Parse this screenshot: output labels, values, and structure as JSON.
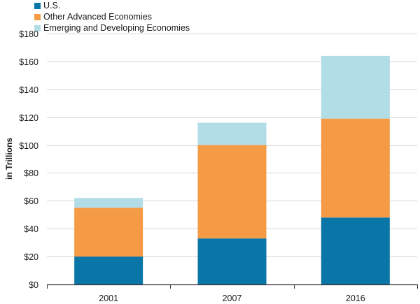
{
  "chart_data": {
    "type": "bar",
    "stacked": true,
    "categories": [
      "2001",
      "2007",
      "2016"
    ],
    "series": [
      {
        "name": "U.S.",
        "color": "#0a76a8",
        "values": [
          20,
          33,
          48
        ]
      },
      {
        "name": "Other Advanced Economies",
        "color": "#f59a45",
        "values": [
          35,
          67,
          71
        ]
      },
      {
        "name": "Emerging and Developing Economies",
        "color": "#b3dde6",
        "values": [
          7,
          16,
          45
        ]
      }
    ],
    "title": "",
    "xlabel": "",
    "ylabel": "in Trillions",
    "ylim": [
      0,
      180
    ],
    "yticks": [
      0,
      20,
      40,
      60,
      80,
      100,
      120,
      140,
      160,
      180
    ],
    "ytick_labels": [
      "$0",
      "$20",
      "$40",
      "$60",
      "$80",
      "$100",
      "$120",
      "$140",
      "$160",
      "$180"
    ],
    "grid": true,
    "legend_position": "top-left"
  }
}
